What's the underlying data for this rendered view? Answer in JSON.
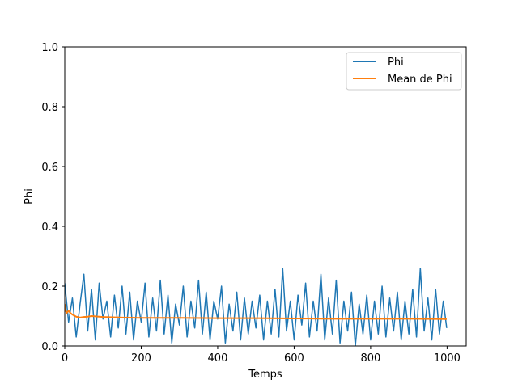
{
  "chart_data": {
    "type": "line",
    "title": "",
    "xlabel": "Temps",
    "ylabel": "Phi",
    "xlim": [
      0,
      1050
    ],
    "ylim": [
      0.0,
      1.0
    ],
    "xticks": [
      0,
      200,
      400,
      600,
      800,
      1000
    ],
    "xtick_labels": [
      "0",
      "200",
      "400",
      "600",
      "800",
      "1000"
    ],
    "yticks": [
      0.0,
      0.2,
      0.4,
      0.6,
      0.8,
      1.0
    ],
    "ytick_labels": [
      "0.0",
      "0.2",
      "0.4",
      "0.6",
      "0.8",
      "1.0"
    ],
    "grid": false,
    "legend_position": "upper right",
    "series": [
      {
        "name": "Phi",
        "color": "#1f77b4",
        "x": [
          0,
          10,
          20,
          30,
          40,
          50,
          60,
          70,
          80,
          90,
          100,
          110,
          120,
          130,
          140,
          150,
          160,
          170,
          180,
          190,
          200,
          210,
          220,
          230,
          240,
          250,
          260,
          270,
          280,
          290,
          300,
          310,
          320,
          330,
          340,
          350,
          360,
          370,
          380,
          390,
          400,
          410,
          420,
          430,
          440,
          450,
          460,
          470,
          480,
          490,
          500,
          510,
          520,
          530,
          540,
          550,
          560,
          570,
          580,
          590,
          600,
          610,
          620,
          630,
          640,
          650,
          660,
          670,
          680,
          690,
          700,
          710,
          720,
          730,
          740,
          750,
          760,
          770,
          780,
          790,
          800,
          810,
          820,
          830,
          840,
          850,
          860,
          870,
          880,
          890,
          900,
          910,
          920,
          930,
          940,
          950,
          960,
          970,
          980,
          990,
          999
        ],
        "y": [
          0.21,
          0.08,
          0.16,
          0.03,
          0.14,
          0.24,
          0.05,
          0.19,
          0.02,
          0.21,
          0.09,
          0.15,
          0.03,
          0.17,
          0.06,
          0.2,
          0.04,
          0.18,
          0.02,
          0.15,
          0.08,
          0.21,
          0.03,
          0.16,
          0.05,
          0.22,
          0.04,
          0.17,
          0.01,
          0.14,
          0.07,
          0.2,
          0.03,
          0.15,
          0.06,
          0.22,
          0.04,
          0.18,
          0.02,
          0.15,
          0.09,
          0.2,
          0.01,
          0.14,
          0.05,
          0.18,
          0.02,
          0.16,
          0.04,
          0.15,
          0.06,
          0.17,
          0.02,
          0.15,
          0.04,
          0.19,
          0.03,
          0.26,
          0.05,
          0.15,
          0.02,
          0.17,
          0.07,
          0.21,
          0.03,
          0.15,
          0.05,
          0.24,
          0.02,
          0.16,
          0.04,
          0.22,
          0.01,
          0.15,
          0.05,
          0.18,
          0.0,
          0.14,
          0.04,
          0.17,
          0.02,
          0.15,
          0.04,
          0.2,
          0.03,
          0.16,
          0.05,
          0.18,
          0.02,
          0.15,
          0.04,
          0.19,
          0.03,
          0.26,
          0.05,
          0.16,
          0.02,
          0.19,
          0.04,
          0.15,
          0.06
        ]
      },
      {
        "name": "Mean de Phi",
        "color": "#ff7f0e",
        "x": [
          0,
          2,
          5,
          10,
          15,
          20,
          30,
          40,
          50,
          60,
          70,
          80,
          100,
          150,
          200,
          300,
          400,
          500,
          600,
          700,
          800,
          900,
          999
        ],
        "y": [
          0.14,
          0.12,
          0.11,
          0.118,
          0.11,
          0.105,
          0.098,
          0.095,
          0.097,
          0.098,
          0.1,
          0.099,
          0.097,
          0.095,
          0.094,
          0.094,
          0.093,
          0.093,
          0.092,
          0.091,
          0.091,
          0.091,
          0.09
        ]
      }
    ]
  }
}
